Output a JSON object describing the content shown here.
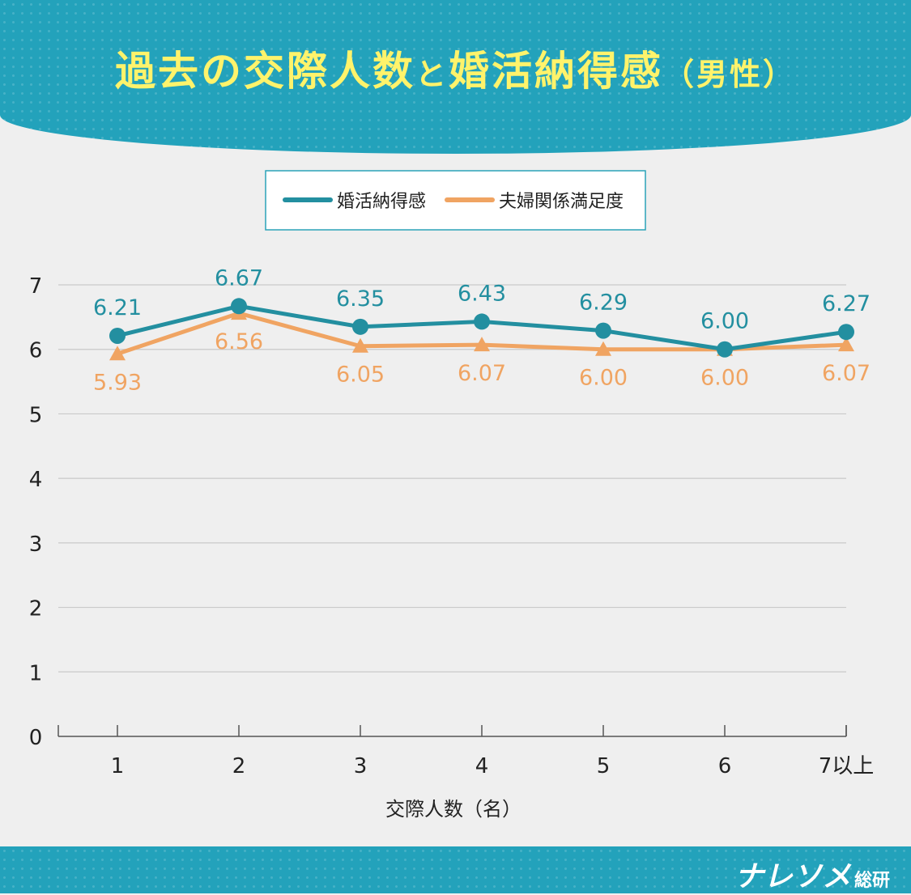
{
  "title": {
    "part1": "過去の交際人数",
    "particle": "と",
    "part2": "婚活納得感",
    "suffix": "（男性）"
  },
  "brand": {
    "main": "ナレソメ",
    "sub": "総研"
  },
  "colors": {
    "teal": "#238fa0",
    "orange": "#f0a462",
    "header": "#23a2bb",
    "title": "#fff36b"
  },
  "chart_data": {
    "type": "line",
    "categories": [
      "1",
      "2",
      "3",
      "4",
      "5",
      "6",
      "7以上"
    ],
    "xlabel": "交際人数（名）",
    "ylabel": "",
    "ylim": [
      0,
      7
    ],
    "yticks": [
      0,
      1,
      2,
      3,
      4,
      5,
      6,
      7
    ],
    "grid": true,
    "legend": "top-center",
    "series": [
      {
        "name": "婚活納得感",
        "marker": "circle",
        "color": "#238fa0",
        "values": [
          6.21,
          6.67,
          6.35,
          6.43,
          6.29,
          6.0,
          6.27
        ],
        "labels": [
          "6.21",
          "6.67",
          "6.35",
          "6.43",
          "6.29",
          "6.00",
          "6.27"
        ]
      },
      {
        "name": "夫婦関係満足度",
        "marker": "triangle",
        "color": "#f0a462",
        "values": [
          5.93,
          6.56,
          6.05,
          6.07,
          6.0,
          6.0,
          6.07
        ],
        "labels": [
          "5.93",
          "6.56",
          "6.05",
          "6.07",
          "6.00",
          "6.00",
          "6.07"
        ]
      }
    ]
  }
}
